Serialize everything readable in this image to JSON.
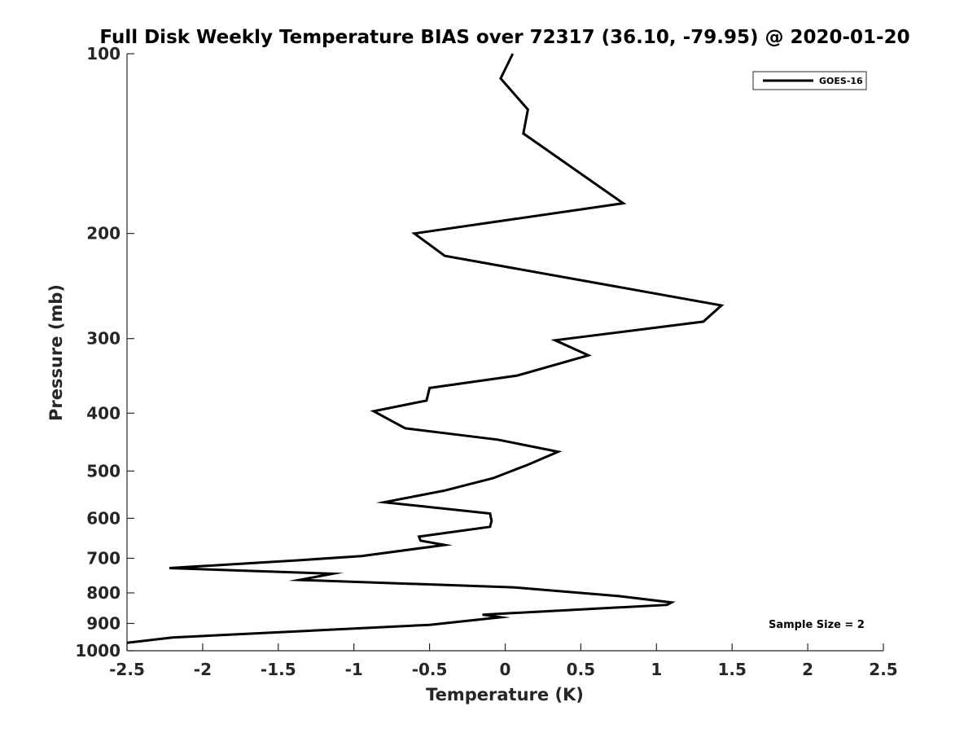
{
  "chart_data": {
    "type": "line",
    "title": "Full Disk Weekly Temperature BIAS over 72317 (36.10, -79.95) @ 2020-01-20",
    "xlabel": "Temperature (K)",
    "ylabel": "Pressure (mb)",
    "xlim": [
      -2.5,
      2.5
    ],
    "ylim": [
      100,
      1000
    ],
    "y_scale": "log",
    "y_reversed": true,
    "x_ticks": [
      "-2.5",
      "-2",
      "-1.5",
      "-1",
      "-0.5",
      "0",
      "0.5",
      "1",
      "1.5",
      "2",
      "2.5"
    ],
    "y_ticks": [
      "100",
      "200",
      "300",
      "400",
      "500",
      "600",
      "700",
      "800",
      "900",
      "1000"
    ],
    "grid": false,
    "legend_position": "top-right",
    "annotation": "Sample Size = 2",
    "line_color": "#000000",
    "series": [
      {
        "name": "GOES-16",
        "x": [
          0.05,
          -0.03,
          0.15,
          0.12,
          0.78,
          -0.6,
          -0.4,
          1.43,
          1.31,
          0.33,
          0.55,
          0.08,
          -0.5,
          -0.52,
          -0.87,
          -0.66,
          -0.05,
          0.35,
          0.15,
          -0.08,
          -0.4,
          -0.8,
          -0.1,
          -0.09,
          -0.1,
          -0.57,
          -0.56,
          -0.4,
          -0.95,
          -1.35,
          -2.22,
          -1.14,
          -1.36,
          0.05,
          0.75,
          1.1,
          1.07,
          -0.15,
          -0.03,
          -0.5,
          -2.2,
          -2.5
        ],
        "y": [
          100,
          110,
          124,
          136,
          178,
          200,
          218,
          264,
          281,
          302,
          320,
          346,
          363,
          381,
          397,
          424,
          443,
          464,
          488,
          514,
          539,
          564,
          589,
          606,
          620,
          644,
          654,
          665,
          694,
          705,
          727,
          743,
          761,
          783,
          810,
          830,
          838,
          870,
          879,
          905,
          950,
          970
        ]
      }
    ]
  }
}
